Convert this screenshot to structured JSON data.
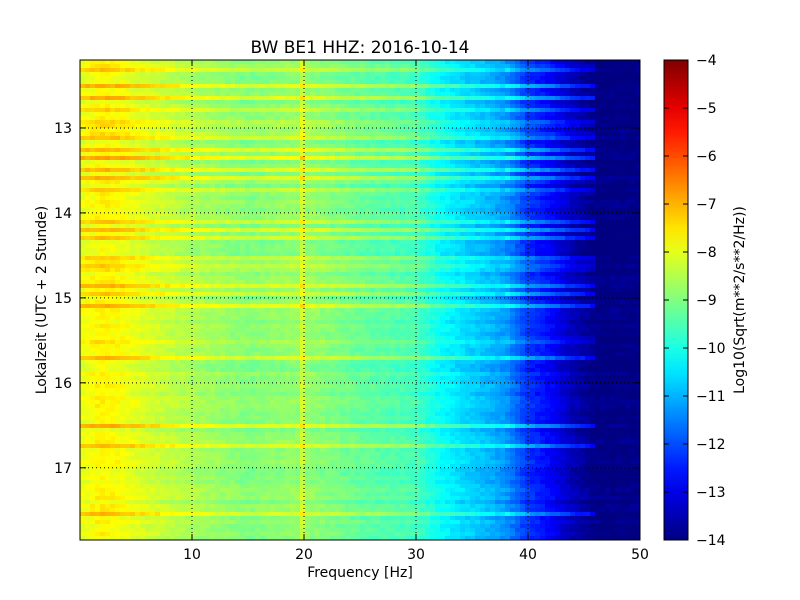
{
  "chart_data": {
    "type": "heatmap",
    "title": "BW BE1 HHZ: 2016-10-14",
    "xlabel": "Frequency [Hz]",
    "ylabel": "Lokalzeit (UTC + 2 Stunde)",
    "xlim": [
      0,
      50
    ],
    "ylim": [
      12.2,
      17.85
    ],
    "y_inverted": true,
    "grid": "dotted",
    "xticks": [
      10,
      20,
      30,
      40,
      50
    ],
    "yticks": [
      13,
      14,
      15,
      16,
      17
    ],
    "colorbar": {
      "label": "Log10(Sqrt(m**2/s**2/Hz))",
      "colormap": "jet",
      "range": [
        -14,
        -4
      ],
      "ticks": [
        -4,
        -5,
        -6,
        -7,
        -8,
        -9,
        -10,
        -11,
        -12,
        -13,
        -14
      ]
    },
    "frequency_profile_hz": [
      0,
      2,
      4,
      6,
      8,
      10,
      15,
      20,
      25,
      30,
      32,
      34,
      36,
      38,
      40,
      42,
      44,
      46,
      48,
      50
    ],
    "frequency_profile_level": [
      -8.0,
      -7.7,
      -7.9,
      -8.2,
      -8.4,
      -8.6,
      -9.0,
      -8.8,
      -9.3,
      -9.6,
      -10.2,
      -10.6,
      -10.9,
      -11.3,
      -12.3,
      -12.8,
      -13.5,
      -14.0,
      -14.0,
      -14.0
    ],
    "bright_bands_hours": [
      12.3,
      12.5,
      12.65,
      12.8,
      12.95,
      13.1,
      13.25,
      13.35,
      13.5,
      13.6,
      13.75,
      14.1,
      14.2,
      14.3,
      14.55,
      14.65,
      14.85,
      14.95,
      15.1,
      15.5,
      15.7,
      16.5,
      16.75,
      17.55
    ]
  }
}
